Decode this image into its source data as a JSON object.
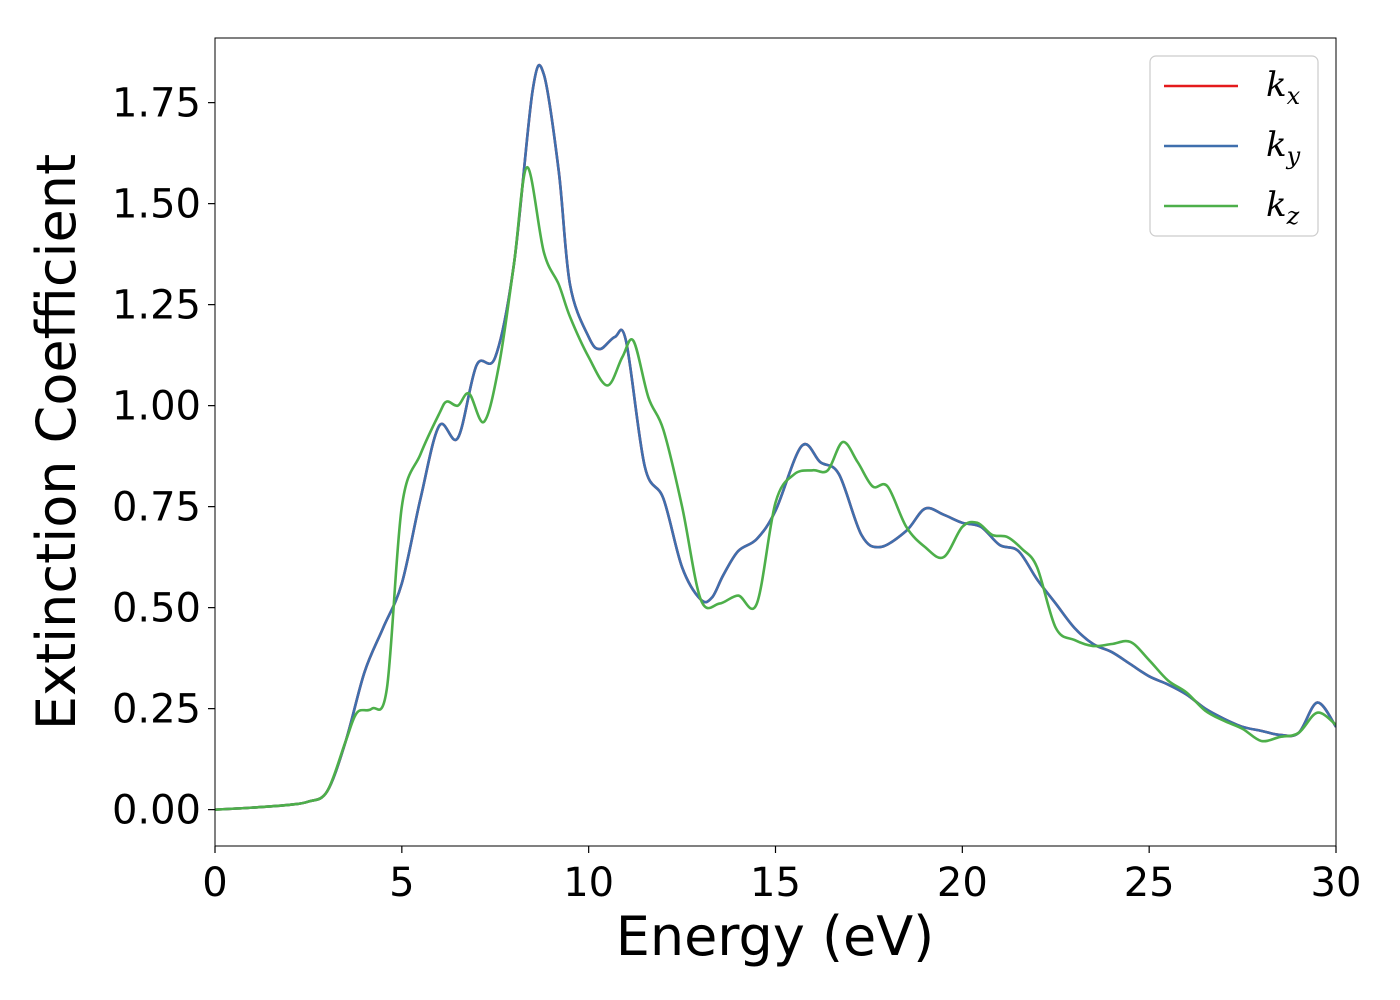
{
  "chart_data": {
    "type": "line",
    "title": "",
    "xlabel": "Energy (eV)",
    "ylabel": "Extinction Coefficient",
    "xlim": [
      0,
      30
    ],
    "ylim": [
      -0.09,
      1.91
    ],
    "xticks": [
      0,
      5,
      10,
      15,
      20,
      25,
      30
    ],
    "xtick_labels": [
      "0",
      "5",
      "10",
      "15",
      "20",
      "25",
      "30"
    ],
    "yticks": [
      0.0,
      0.25,
      0.5,
      0.75,
      1.0,
      1.25,
      1.5,
      1.75
    ],
    "ytick_labels": [
      "0.00",
      "0.25",
      "0.50",
      "0.75",
      "1.00",
      "1.25",
      "1.50",
      "1.75"
    ],
    "grid": false,
    "legend_position": "top-right",
    "series": [
      {
        "name": "k",
        "subscript": "x",
        "color": "#e41a1c",
        "x": [
          0,
          1,
          2,
          2.5,
          3,
          3.5,
          4,
          4.5,
          5,
          5.5,
          6,
          6.5,
          7,
          7.5,
          8,
          8.5,
          8.8,
          9.2,
          9.5,
          10,
          10.3,
          10.7,
          11,
          11.5,
          12,
          12.5,
          13,
          13.3,
          13.6,
          14,
          14.5,
          15,
          15.7,
          16.2,
          16.7,
          17.3,
          17.8,
          18.5,
          19,
          19.5,
          20,
          20.5,
          21,
          21.5,
          22,
          22.5,
          23,
          23.5,
          24,
          24.5,
          25,
          25.5,
          26,
          26.5,
          27,
          27.5,
          28,
          28.5,
          29,
          29.5,
          30
        ],
        "values": [
          0.0,
          0.005,
          0.012,
          0.02,
          0.045,
          0.17,
          0.34,
          0.45,
          0.56,
          0.77,
          0.95,
          0.92,
          1.1,
          1.12,
          1.35,
          1.78,
          1.82,
          1.58,
          1.3,
          1.17,
          1.14,
          1.17,
          1.16,
          0.85,
          0.77,
          0.6,
          0.52,
          0.525,
          0.58,
          0.64,
          0.67,
          0.74,
          0.9,
          0.86,
          0.83,
          0.68,
          0.65,
          0.69,
          0.745,
          0.73,
          0.71,
          0.7,
          0.655,
          0.64,
          0.57,
          0.51,
          0.45,
          0.41,
          0.39,
          0.36,
          0.33,
          0.31,
          0.285,
          0.25,
          0.225,
          0.205,
          0.195,
          0.185,
          0.19,
          0.265,
          0.205
        ]
      },
      {
        "name": "k",
        "subscript": "y",
        "color": "#3f6fad",
        "x": [
          0,
          1,
          2,
          2.5,
          3,
          3.5,
          4,
          4.5,
          5,
          5.5,
          6,
          6.5,
          7,
          7.5,
          8,
          8.5,
          8.8,
          9.2,
          9.5,
          10,
          10.3,
          10.7,
          11,
          11.5,
          12,
          12.5,
          13,
          13.3,
          13.6,
          14,
          14.5,
          15,
          15.7,
          16.2,
          16.7,
          17.3,
          17.8,
          18.5,
          19,
          19.5,
          20,
          20.5,
          21,
          21.5,
          22,
          22.5,
          23,
          23.5,
          24,
          24.5,
          25,
          25.5,
          26,
          26.5,
          27,
          27.5,
          28,
          28.5,
          29,
          29.5,
          30
        ],
        "values": [
          0.0,
          0.005,
          0.012,
          0.02,
          0.045,
          0.17,
          0.34,
          0.45,
          0.56,
          0.77,
          0.95,
          0.92,
          1.1,
          1.12,
          1.35,
          1.78,
          1.82,
          1.58,
          1.3,
          1.17,
          1.14,
          1.17,
          1.16,
          0.85,
          0.77,
          0.6,
          0.52,
          0.525,
          0.58,
          0.64,
          0.67,
          0.74,
          0.9,
          0.86,
          0.83,
          0.68,
          0.65,
          0.69,
          0.745,
          0.73,
          0.71,
          0.7,
          0.655,
          0.64,
          0.57,
          0.51,
          0.45,
          0.41,
          0.39,
          0.36,
          0.33,
          0.31,
          0.285,
          0.25,
          0.225,
          0.205,
          0.195,
          0.185,
          0.19,
          0.265,
          0.205
        ]
      },
      {
        "name": "k",
        "subscript": "z",
        "color": "#4daf4a",
        "x": [
          0,
          1,
          2,
          2.5,
          3,
          3.5,
          3.8,
          4.2,
          4.6,
          5,
          5.5,
          6,
          6.2,
          6.5,
          6.8,
          7.2,
          7.6,
          8,
          8.35,
          8.8,
          9.2,
          9.5,
          10,
          10.5,
          10.9,
          11.2,
          11.6,
          12,
          12.5,
          13,
          13.5,
          14,
          14.5,
          15,
          15.5,
          16,
          16.4,
          16.8,
          17.2,
          17.6,
          18,
          18.5,
          19,
          19.5,
          20,
          20.4,
          20.8,
          21.2,
          21.6,
          22,
          22.5,
          23,
          23.5,
          24,
          24.5,
          25,
          25.5,
          26,
          26.5,
          27,
          27.5,
          28,
          28.5,
          29,
          29.5,
          30
        ],
        "values": [
          0.0,
          0.005,
          0.012,
          0.02,
          0.045,
          0.17,
          0.24,
          0.25,
          0.3,
          0.75,
          0.88,
          0.98,
          1.01,
          1.0,
          1.03,
          0.96,
          1.1,
          1.35,
          1.59,
          1.38,
          1.3,
          1.22,
          1.12,
          1.05,
          1.12,
          1.16,
          1.02,
          0.94,
          0.75,
          0.52,
          0.51,
          0.53,
          0.51,
          0.76,
          0.83,
          0.84,
          0.84,
          0.91,
          0.86,
          0.8,
          0.8,
          0.7,
          0.65,
          0.625,
          0.7,
          0.71,
          0.68,
          0.675,
          0.645,
          0.6,
          0.45,
          0.42,
          0.405,
          0.41,
          0.415,
          0.37,
          0.32,
          0.29,
          0.245,
          0.22,
          0.2,
          0.17,
          0.18,
          0.19,
          0.24,
          0.21
        ]
      }
    ]
  }
}
